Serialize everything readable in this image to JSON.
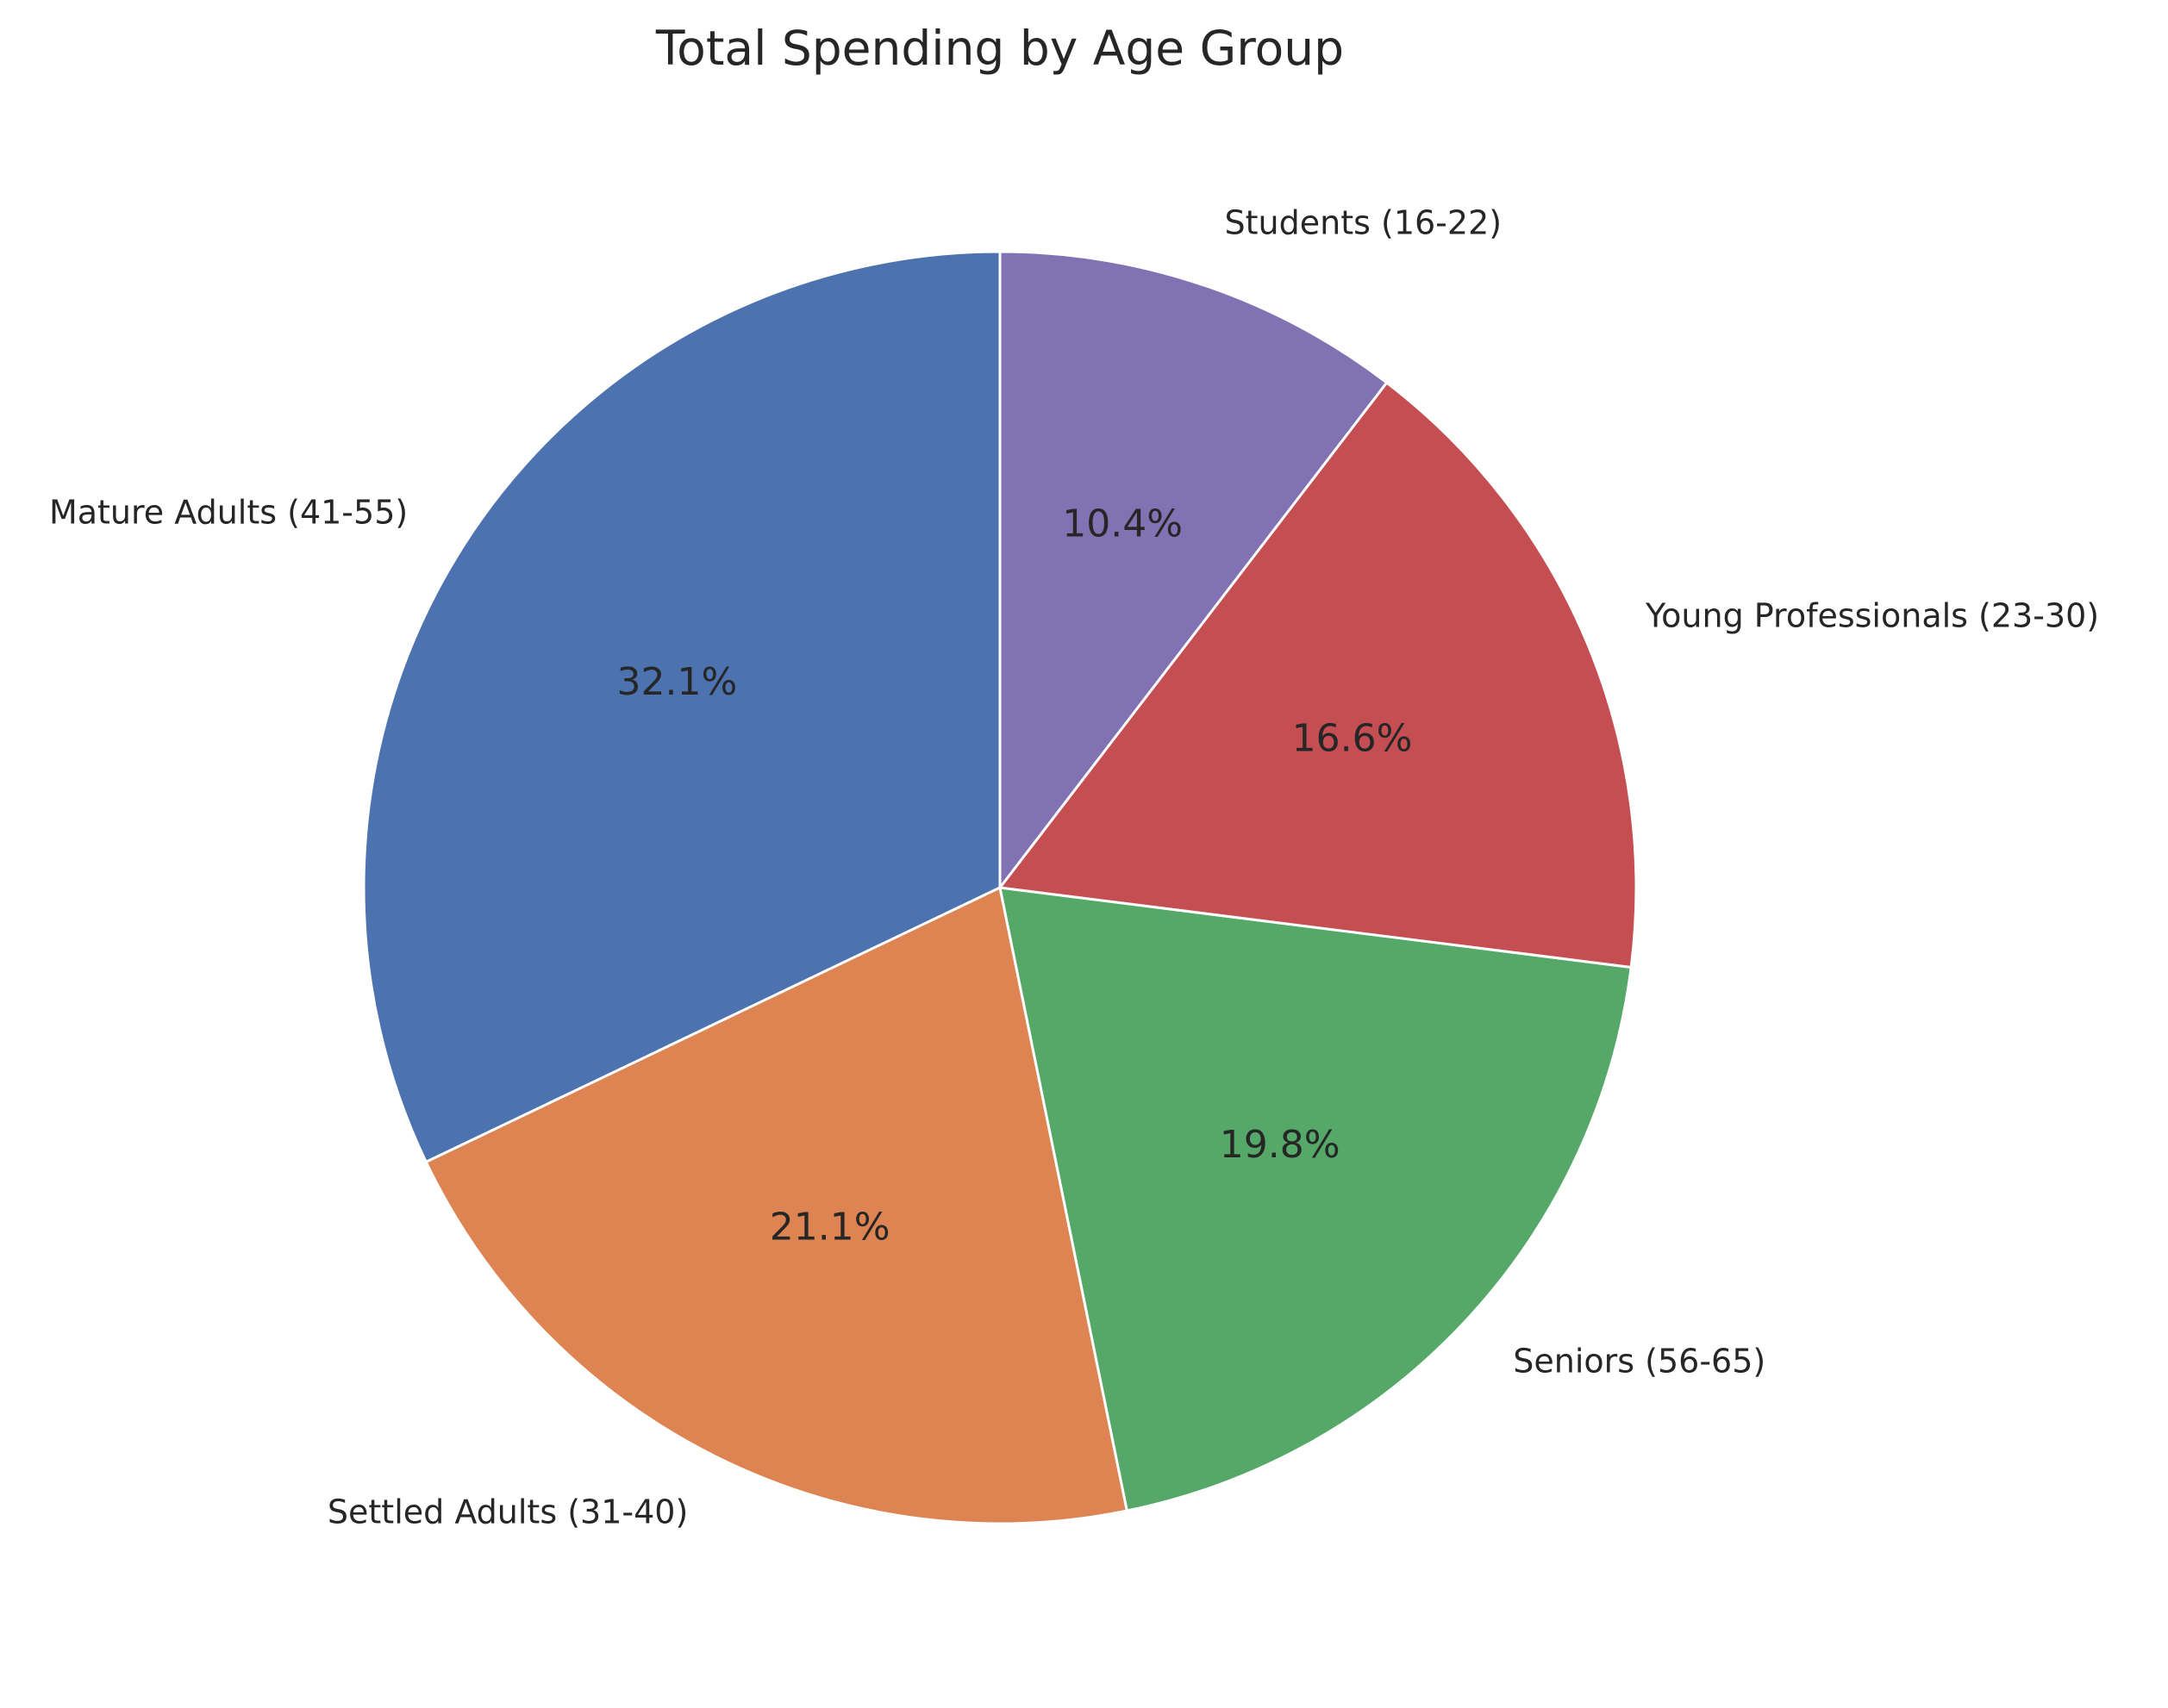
{
  "chart_data": {
    "type": "pie",
    "title": "Total Spending by Age Group",
    "start_angle_deg": 90,
    "direction": "counterclockwise",
    "slices": [
      {
        "label": "Mature Adults (41-55)",
        "value": 32.1,
        "pct_label": "32.1%",
        "color": "#4c72b0"
      },
      {
        "label": "Settled Adults (31-40)",
        "value": 21.1,
        "pct_label": "21.1%",
        "color": "#dd8452"
      },
      {
        "label": "Seniors (56-65)",
        "value": 19.8,
        "pct_label": "19.8%",
        "color": "#55a868"
      },
      {
        "label": "Young Professionals (23-30)",
        "value": 16.6,
        "pct_label": "16.6%",
        "color": "#c44e52"
      },
      {
        "label": "Students (16-22)",
        "value": 10.4,
        "pct_label": "10.4%",
        "color": "#8172b3"
      }
    ],
    "wedge_edge_color": "#ffffff"
  }
}
